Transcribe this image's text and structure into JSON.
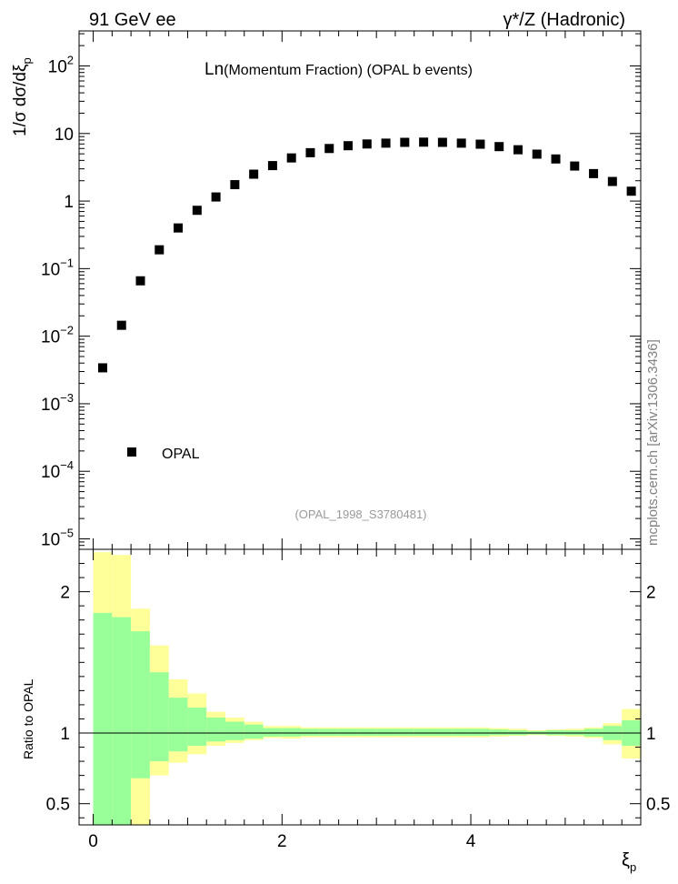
{
  "header": {
    "left": "91 GeV ee",
    "right": "γ*/Z (Hadronic)"
  },
  "plot_title": {
    "prefix": "Ln",
    "rest": "(Momentum Fraction) (OPAL b events)"
  },
  "watermark": "mcplots.cern.ch [arXiv:1306.3436]",
  "analysis_id": "(OPAL_1998_S3780481)",
  "legend": {
    "label": "OPAL",
    "placement": "lower-left"
  },
  "colors": {
    "stat_band": "#99ff99",
    "total_band": "#ffff99",
    "marker": "#000000"
  },
  "chart_data": [
    {
      "type": "scatter",
      "panel": "main",
      "ylabel": "1/σ dσ/dξ",
      "ylabel_sub": "p",
      "yscale": "log",
      "xlim": [
        -0.15,
        5.8
      ],
      "ylim": [
        7e-06,
        330
      ],
      "y_ticks": [
        {
          "v": 1e-05,
          "b": "10",
          "e": "−5"
        },
        {
          "v": 0.0001,
          "b": "10",
          "e": "−4"
        },
        {
          "v": 0.001,
          "b": "10",
          "e": "−3"
        },
        {
          "v": 0.01,
          "b": "10",
          "e": "−2"
        },
        {
          "v": 0.1,
          "b": "10",
          "e": "−1"
        },
        {
          "v": 1,
          "b": "1",
          "e": ""
        },
        {
          "v": 10,
          "b": "10",
          "e": ""
        },
        {
          "v": 100,
          "b": "10",
          "e": "2"
        }
      ],
      "series": [
        {
          "name": "OPAL",
          "x": [
            0.1,
            0.3,
            0.5,
            0.7,
            0.9,
            1.1,
            1.3,
            1.5,
            1.7,
            1.9,
            2.1,
            2.3,
            2.5,
            2.7,
            2.9,
            3.1,
            3.3,
            3.5,
            3.7,
            3.9,
            4.1,
            4.3,
            4.5,
            4.7,
            4.9,
            5.1,
            5.3,
            5.5,
            5.7
          ],
          "y": [
            0.0034,
            0.0145,
            0.066,
            0.19,
            0.4,
            0.73,
            1.15,
            1.75,
            2.5,
            3.35,
            4.35,
            5.2,
            6.0,
            6.6,
            7.0,
            7.2,
            7.4,
            7.45,
            7.4,
            7.2,
            6.95,
            6.4,
            5.75,
            4.95,
            4.2,
            3.3,
            2.55,
            1.95,
            1.4
          ]
        }
      ]
    },
    {
      "type": "area",
      "panel": "ratio",
      "xlabel": "ξ",
      "xlabel_sub": "p",
      "ylabel": "Ratio to OPAL",
      "xlim": [
        -0.15,
        5.8
      ],
      "ylim": [
        0.35,
        2.3
      ],
      "x_ticks": [
        0,
        2,
        4
      ],
      "y_ticks": [
        0.5,
        1,
        2
      ],
      "reference_line": 1,
      "bins": [
        {
          "lo": 0.0,
          "hi": 0.2,
          "stat": [
            0.1,
            1.85
          ],
          "total": [
            0.1,
            2.28
          ]
        },
        {
          "lo": 0.2,
          "hi": 0.4,
          "stat": [
            0.1,
            1.82
          ],
          "total": [
            0.1,
            2.26
          ]
        },
        {
          "lo": 0.4,
          "hi": 0.6,
          "stat": [
            0.68,
            1.72
          ],
          "total": [
            0.1,
            1.88
          ]
        },
        {
          "lo": 0.6,
          "hi": 0.8,
          "stat": [
            0.8,
            1.43
          ],
          "total": [
            0.7,
            1.62
          ]
        },
        {
          "lo": 0.8,
          "hi": 1.0,
          "stat": [
            0.87,
            1.25
          ],
          "total": [
            0.79,
            1.38
          ]
        },
        {
          "lo": 1.0,
          "hi": 1.2,
          "stat": [
            0.91,
            1.18
          ],
          "total": [
            0.85,
            1.28
          ]
        },
        {
          "lo": 1.2,
          "hi": 1.4,
          "stat": [
            0.94,
            1.11
          ],
          "total": [
            0.91,
            1.15
          ]
        },
        {
          "lo": 1.4,
          "hi": 1.6,
          "stat": [
            0.95,
            1.08
          ],
          "total": [
            0.93,
            1.11
          ]
        },
        {
          "lo": 1.6,
          "hi": 1.8,
          "stat": [
            0.96,
            1.06
          ],
          "total": [
            0.95,
            1.08
          ]
        },
        {
          "lo": 1.8,
          "hi": 2.0,
          "stat": [
            0.975,
            1.035
          ],
          "total": [
            0.965,
            1.05
          ]
        },
        {
          "lo": 2.0,
          "hi": 2.2,
          "stat": [
            0.975,
            1.035
          ],
          "total": [
            0.96,
            1.05
          ]
        },
        {
          "lo": 2.2,
          "hi": 2.4,
          "stat": [
            0.98,
            1.03
          ],
          "total": [
            0.97,
            1.04
          ]
        },
        {
          "lo": 2.4,
          "hi": 2.6,
          "stat": [
            0.98,
            1.03
          ],
          "total": [
            0.97,
            1.04
          ]
        },
        {
          "lo": 2.6,
          "hi": 2.8,
          "stat": [
            0.98,
            1.03
          ],
          "total": [
            0.97,
            1.04
          ]
        },
        {
          "lo": 2.8,
          "hi": 3.0,
          "stat": [
            0.98,
            1.03
          ],
          "total": [
            0.97,
            1.04
          ]
        },
        {
          "lo": 3.0,
          "hi": 3.2,
          "stat": [
            0.98,
            1.03
          ],
          "total": [
            0.97,
            1.04
          ]
        },
        {
          "lo": 3.2,
          "hi": 3.4,
          "stat": [
            0.98,
            1.03
          ],
          "total": [
            0.97,
            1.04
          ]
        },
        {
          "lo": 3.4,
          "hi": 3.6,
          "stat": [
            0.98,
            1.03
          ],
          "total": [
            0.97,
            1.04
          ]
        },
        {
          "lo": 3.6,
          "hi": 3.8,
          "stat": [
            0.98,
            1.03
          ],
          "total": [
            0.97,
            1.04
          ]
        },
        {
          "lo": 3.8,
          "hi": 4.0,
          "stat": [
            0.98,
            1.03
          ],
          "total": [
            0.97,
            1.04
          ]
        },
        {
          "lo": 4.0,
          "hi": 4.2,
          "stat": [
            0.98,
            1.03
          ],
          "total": [
            0.97,
            1.04
          ]
        },
        {
          "lo": 4.2,
          "hi": 4.4,
          "stat": [
            0.985,
            1.025
          ],
          "total": [
            0.975,
            1.035
          ]
        },
        {
          "lo": 4.4,
          "hi": 4.6,
          "stat": [
            0.985,
            1.02
          ],
          "total": [
            0.98,
            1.03
          ]
        },
        {
          "lo": 4.6,
          "hi": 4.8,
          "stat": [
            0.99,
            1.015
          ],
          "total": [
            0.985,
            1.02
          ]
        },
        {
          "lo": 4.8,
          "hi": 5.0,
          "stat": [
            0.985,
            1.02
          ],
          "total": [
            0.98,
            1.025
          ]
        },
        {
          "lo": 5.0,
          "hi": 5.2,
          "stat": [
            0.985,
            1.02
          ],
          "total": [
            0.975,
            1.03
          ]
        },
        {
          "lo": 5.2,
          "hi": 5.4,
          "stat": [
            0.975,
            1.03
          ],
          "total": [
            0.965,
            1.04
          ]
        },
        {
          "lo": 5.4,
          "hi": 5.6,
          "stat": [
            0.95,
            1.05
          ],
          "total": [
            0.92,
            1.07
          ]
        },
        {
          "lo": 5.6,
          "hi": 5.8,
          "stat": [
            0.91,
            1.09
          ],
          "total": [
            0.82,
            1.17
          ]
        }
      ]
    }
  ]
}
